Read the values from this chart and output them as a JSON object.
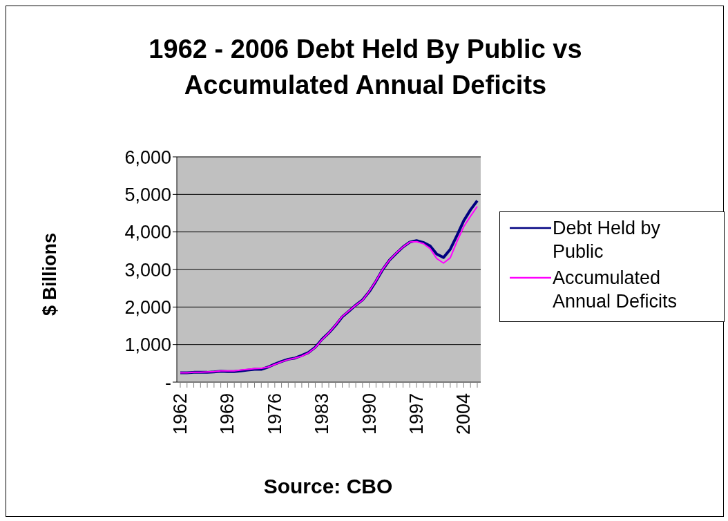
{
  "chart_data": {
    "type": "line",
    "title": "1962 - 2006 Debt Held By Public vs Accumulated Annual Deficits",
    "ylabel": "$ Billions",
    "xlabel": "Source:  CBO",
    "categories": [
      "1962",
      null,
      null,
      null,
      null,
      null,
      null,
      "1969",
      null,
      null,
      null,
      null,
      null,
      null,
      "1976",
      null,
      null,
      null,
      null,
      null,
      null,
      "1983",
      null,
      null,
      null,
      null,
      null,
      null,
      "1990",
      null,
      null,
      null,
      null,
      null,
      null,
      "1997",
      null,
      null,
      null,
      null,
      null,
      null,
      "2004",
      null,
      null
    ],
    "series": [
      {
        "name": "Debt Held by Public",
        "color": "#000080",
        "values": [
          250,
          250,
          260,
          260,
          260,
          270,
          290,
          280,
          280,
          300,
          320,
          340,
          340,
          400,
          480,
          550,
          610,
          640,
          710,
          790,
          930,
          1140,
          1310,
          1510,
          1740,
          1890,
          2050,
          2190,
          2410,
          2690,
          3000,
          3250,
          3430,
          3600,
          3730,
          3770,
          3720,
          3630,
          3410,
          3320,
          3540,
          3910,
          4300,
          4590,
          4830
        ]
      },
      {
        "name": "Accumulated Annual Deficits",
        "color": "#ff00ff",
        "values": [
          250,
          250,
          260,
          260,
          270,
          280,
          300,
          300,
          300,
          320,
          340,
          360,
          370,
          400,
          470,
          540,
          600,
          640,
          690,
          780,
          920,
          1130,
          1310,
          1520,
          1750,
          1900,
          2050,
          2180,
          2420,
          2700,
          3010,
          3250,
          3440,
          3600,
          3730,
          3740,
          3690,
          3560,
          3290,
          3170,
          3310,
          3750,
          4140,
          4420,
          4680
        ]
      }
    ],
    "ylim": [
      0,
      6000
    ],
    "yticks": [
      {
        "value": 0,
        "label": "-"
      },
      {
        "value": 1000,
        "label": "1,000"
      },
      {
        "value": 2000,
        "label": "2,000"
      },
      {
        "value": 3000,
        "label": "3,000"
      },
      {
        "value": 4000,
        "label": "4,000"
      },
      {
        "value": 5000,
        "label": "5,000"
      },
      {
        "value": 6000,
        "label": "6,000"
      }
    ],
    "grid": "y",
    "legend": "right",
    "marker": "none",
    "line_style": "solid"
  }
}
